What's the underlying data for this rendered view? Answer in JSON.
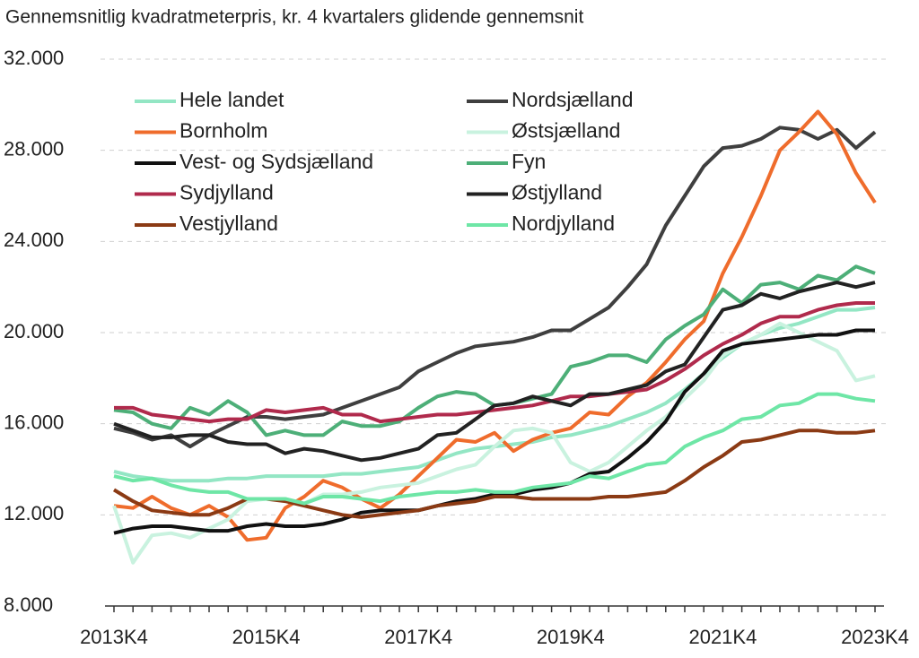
{
  "chart_data": {
    "type": "line",
    "title": "Gennemsnitlig kvadratmeterpris, kr. 4 kvartalers glidende gennemsnit",
    "categories": [
      "2013K4",
      null,
      null,
      null,
      null,
      null,
      null,
      null,
      "2015K4",
      null,
      null,
      null,
      null,
      null,
      null,
      null,
      "2017K4",
      null,
      null,
      null,
      null,
      null,
      null,
      null,
      "2019K4",
      null,
      null,
      null,
      null,
      null,
      null,
      null,
      "2021K4",
      null,
      null,
      null,
      null,
      null,
      null,
      null,
      "2023K4"
    ],
    "ylim": [
      8000,
      32000
    ],
    "yticks": [
      {
        "value": 8000,
        "label": "8.000"
      },
      {
        "value": 12000,
        "label": "12.000"
      },
      {
        "value": 16000,
        "label": "16.000"
      },
      {
        "value": 20000,
        "label": "20.000"
      },
      {
        "value": 24000,
        "label": "24.000"
      },
      {
        "value": 28000,
        "label": "28.000"
      },
      {
        "value": 32000,
        "label": "32.000"
      }
    ],
    "grid": true,
    "series": [
      {
        "name": "Hele landet",
        "color": "#93e6c4",
        "values": [
          13900,
          13700,
          13600,
          13500,
          13500,
          13500,
          13600,
          13600,
          13700,
          13700,
          13700,
          13700,
          13800,
          13800,
          13900,
          14000,
          14100,
          14400,
          14700,
          14900,
          15000,
          15100,
          15200,
          15400,
          15500,
          15700,
          15900,
          16200,
          16500,
          16900,
          17500,
          18200,
          18900,
          19500,
          19900,
          20200,
          20400,
          20700,
          21000,
          21000,
          21100
        ]
      },
      {
        "name": "Nordsjælland",
        "color": "#3f3f3f",
        "values": [
          15800,
          15600,
          15300,
          15500,
          15000,
          15500,
          15900,
          16300,
          16300,
          16200,
          16300,
          16400,
          16700,
          17000,
          17300,
          17600,
          18300,
          18700,
          19100,
          19400,
          19500,
          19600,
          19800,
          20100,
          20100,
          20600,
          21100,
          22000,
          23000,
          24700,
          26000,
          27300,
          28100,
          28200,
          28500,
          29000,
          28900,
          28500,
          28900,
          28100,
          28800
        ]
      },
      {
        "name": "Bornholm",
        "color": "#ef6c2c",
        "values": [
          12400,
          12300,
          12800,
          12300,
          12000,
          12400,
          11900,
          10900,
          11000,
          12300,
          12800,
          13500,
          13200,
          12700,
          12300,
          12900,
          13700,
          14500,
          15300,
          15200,
          15600,
          14800,
          15300,
          15600,
          15800,
          16500,
          16400,
          17200,
          17800,
          18700,
          19700,
          20500,
          22600,
          24200,
          26000,
          28000,
          28800,
          29700,
          28700,
          27000,
          25700
        ]
      },
      {
        "name": "Østsjælland",
        "color": "#c9f2df",
        "values": [
          12400,
          9900,
          11100,
          11200,
          11000,
          11400,
          11800,
          12600,
          12700,
          12700,
          12500,
          12900,
          12900,
          13000,
          13200,
          13300,
          13400,
          13700,
          14000,
          14200,
          15000,
          15700,
          15800,
          15600,
          14300,
          13900,
          14300,
          15000,
          15700,
          16300,
          17100,
          17900,
          19000,
          19500,
          19900,
          20400,
          20000,
          19600,
          19200,
          17900,
          18100
        ]
      },
      {
        "name": "Vest- og Sydsjælland",
        "color": "#111111",
        "values": [
          11200,
          11400,
          11500,
          11500,
          11400,
          11300,
          11300,
          11500,
          11600,
          11500,
          11500,
          11600,
          11800,
          12100,
          12200,
          12200,
          12200,
          12400,
          12600,
          12700,
          12900,
          12900,
          13100,
          13200,
          13400,
          13800,
          13900,
          14500,
          15200,
          16100,
          17400,
          18200,
          19200,
          19500,
          19600,
          19700,
          19800,
          19900,
          19900,
          20100,
          20100
        ]
      },
      {
        "name": "Fyn",
        "color": "#4daf78",
        "values": [
          16600,
          16500,
          16000,
          15800,
          16700,
          16400,
          17000,
          16500,
          15500,
          15700,
          15500,
          15500,
          16100,
          15900,
          15900,
          16100,
          16700,
          17200,
          17400,
          17300,
          16800,
          16900,
          17100,
          17300,
          18500,
          18700,
          19000,
          19000,
          18700,
          19700,
          20300,
          20800,
          21900,
          21300,
          22100,
          22200,
          21900,
          22500,
          22300,
          22900,
          22600
        ]
      },
      {
        "name": "Sydjylland",
        "color": "#b02a4c",
        "values": [
          16700,
          16700,
          16400,
          16300,
          16200,
          16100,
          16200,
          16200,
          16600,
          16500,
          16600,
          16700,
          16400,
          16400,
          16100,
          16200,
          16300,
          16400,
          16400,
          16500,
          16600,
          16700,
          16800,
          17000,
          17200,
          17200,
          17300,
          17400,
          17500,
          17900,
          18400,
          19000,
          19500,
          19900,
          20400,
          20700,
          20700,
          21000,
          21200,
          21300,
          21300
        ]
      },
      {
        "name": "Østjylland",
        "color": "#222222",
        "values": [
          16000,
          15700,
          15400,
          15400,
          15500,
          15500,
          15200,
          15100,
          15100,
          14700,
          14900,
          14800,
          14600,
          14400,
          14500,
          14700,
          14900,
          15500,
          15600,
          16200,
          16800,
          16900,
          17200,
          17000,
          16800,
          17300,
          17300,
          17500,
          17700,
          18300,
          18600,
          19800,
          21000,
          21200,
          21700,
          21500,
          21800,
          22000,
          22200,
          22000,
          22200
        ]
      },
      {
        "name": "Vestjylland",
        "color": "#8b3a14",
        "values": [
          13100,
          12600,
          12200,
          12100,
          12000,
          12000,
          12300,
          12700,
          12700,
          12600,
          12400,
          12200,
          12000,
          11900,
          12000,
          12100,
          12200,
          12400,
          12500,
          12600,
          12800,
          12800,
          12700,
          12700,
          12700,
          12700,
          12800,
          12800,
          12900,
          13000,
          13500,
          14100,
          14600,
          15200,
          15300,
          15500,
          15700,
          15700,
          15600,
          15600,
          15700
        ]
      },
      {
        "name": "Nordjylland",
        "color": "#6ee6a6",
        "values": [
          13700,
          13500,
          13600,
          13300,
          13100,
          13000,
          13000,
          12700,
          12700,
          12700,
          12500,
          12800,
          12800,
          12700,
          12600,
          12800,
          12900,
          13000,
          13000,
          13100,
          13000,
          13000,
          13200,
          13300,
          13400,
          13700,
          13600,
          13900,
          14200,
          14300,
          15000,
          15400,
          15700,
          16200,
          16300,
          16800,
          16900,
          17300,
          17300,
          17100,
          17000
        ]
      }
    ]
  }
}
